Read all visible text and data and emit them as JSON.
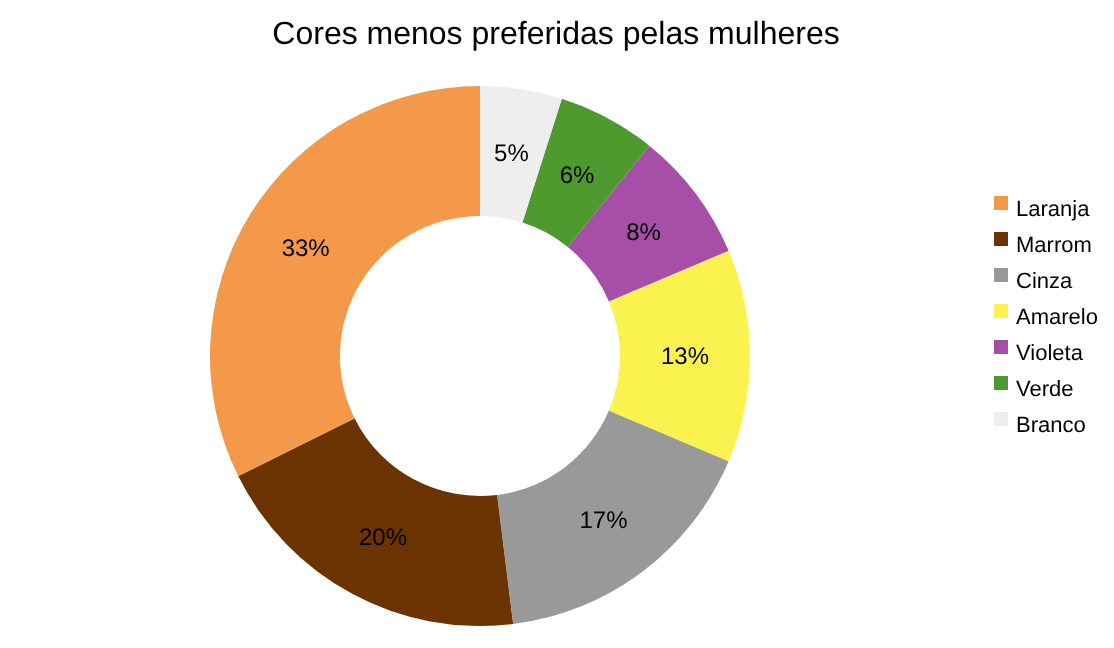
{
  "chart_data": {
    "type": "donut",
    "title": "Cores menos preferidas pelas mulheres",
    "categories": [
      "Laranja",
      "Marrom",
      "Cinza",
      "Amarelo",
      "Violeta",
      "Verde",
      "Branco"
    ],
    "values": [
      33,
      20,
      17,
      13,
      8,
      6,
      5
    ],
    "colors": [
      "#f4994a",
      "#6b3300",
      "#999999",
      "#f9f24f",
      "#a64fa6",
      "#4e9a2f",
      "#eeeeee"
    ],
    "value_labels": [
      "33%",
      "20%",
      "17%",
      "13%",
      "8%",
      "6%",
      "5%"
    ],
    "legend": "right"
  }
}
